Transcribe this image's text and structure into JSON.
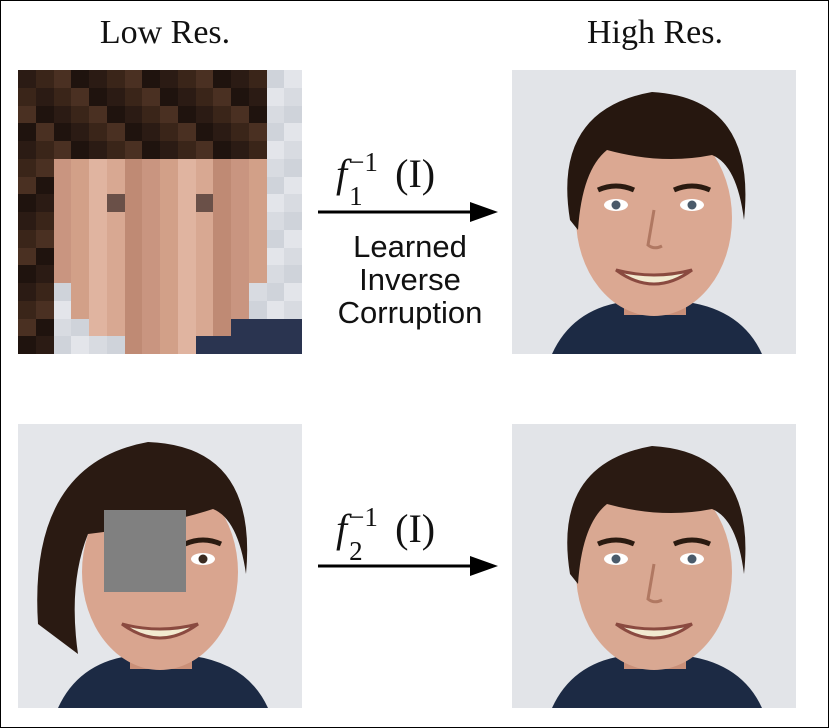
{
  "headings": {
    "left": "Low Res.",
    "right": "High Res."
  },
  "rows": [
    {
      "function": {
        "base": "f",
        "subscript": "1",
        "superscript": "−1",
        "argument": "(I)"
      },
      "caption_lines": [
        "Learned",
        "Inverse",
        "Corruption"
      ]
    },
    {
      "function": {
        "base": "f",
        "subscript": "2",
        "superscript": "−1",
        "argument": "(I)"
      },
      "caption_lines": []
    }
  ],
  "colors": {
    "occlusion": "#808080",
    "hair": "#2a1a12",
    "skin": "#d9a58f",
    "background": "#e4e6ea",
    "shirt": "#1c2a44"
  }
}
